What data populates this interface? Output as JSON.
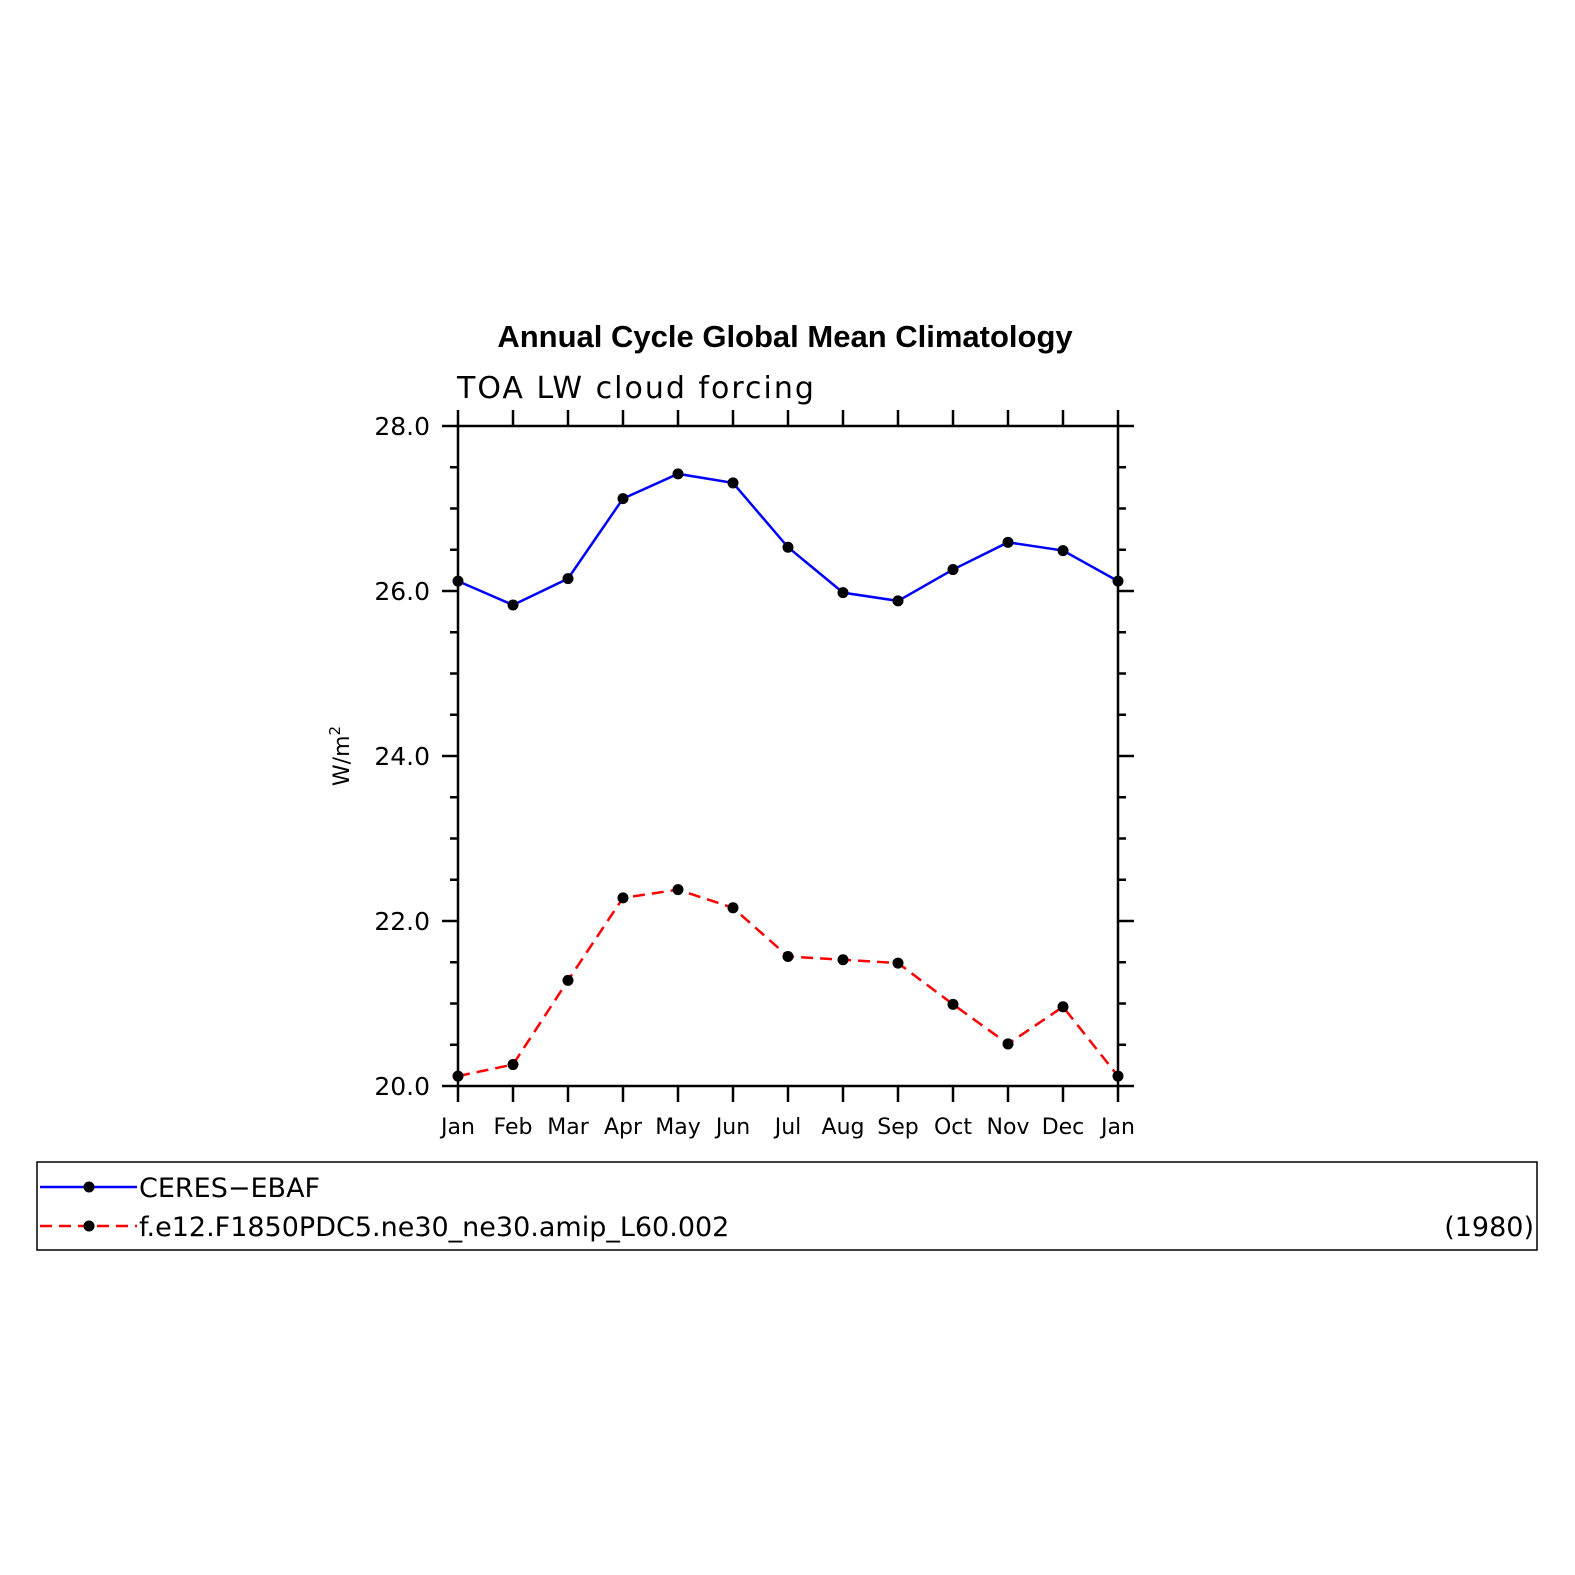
{
  "chart_data": {
    "type": "line",
    "title": "Annual Cycle Global Mean Climatology",
    "subtitle": "TOA LW cloud forcing",
    "ylabel": "W/m",
    "ylabel_sup": "2",
    "categories": [
      "Jan",
      "Feb",
      "Mar",
      "Apr",
      "May",
      "Jun",
      "Jul",
      "Aug",
      "Sep",
      "Oct",
      "Nov",
      "Dec",
      "Jan"
    ],
    "ylim": [
      20.0,
      28.0
    ],
    "yticks": [
      {
        "value": 20.0,
        "label": "20.0"
      },
      {
        "value": 22.0,
        "label": "22.0"
      },
      {
        "value": 24.0,
        "label": "24.0"
      },
      {
        "value": 26.0,
        "label": "26.0"
      },
      {
        "value": 28.0,
        "label": "28.0"
      }
    ],
    "series": [
      {
        "name": "CERES−EBAF",
        "color": "#0000ff",
        "dashed": false,
        "values": [
          26.12,
          25.83,
          26.15,
          27.12,
          27.42,
          27.31,
          26.53,
          25.98,
          25.88,
          26.26,
          26.59,
          26.49,
          26.12
        ]
      },
      {
        "name": "f.e12.F1850PDC5.ne30_ne30.amip_L60.002",
        "note": "(1980)",
        "color": "#ff0000",
        "dashed": true,
        "values": [
          20.12,
          20.26,
          21.28,
          22.28,
          22.38,
          22.16,
          21.57,
          21.53,
          21.49,
          20.99,
          20.51,
          20.96,
          20.12
        ]
      }
    ],
    "marker_color": "#000000",
    "grid": false,
    "legend_position": "bottom"
  }
}
